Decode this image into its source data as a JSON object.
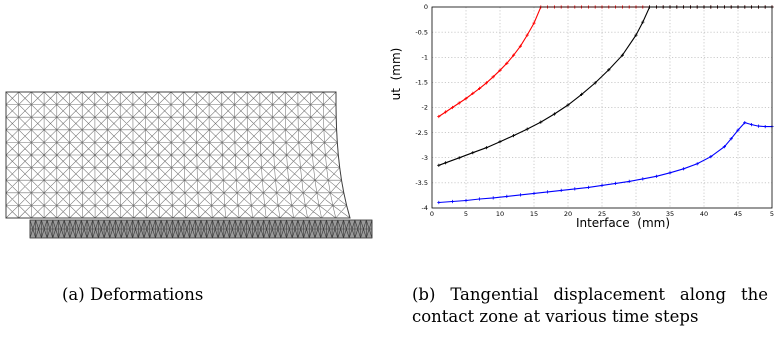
{
  "figure_a": {
    "caption_label": "(a)",
    "caption_text": "Deformations"
  },
  "figure_b": {
    "caption_label": "(b)",
    "caption_text": "Tangential displacement along the contact zone at various time steps"
  },
  "colors": {
    "red": "#ff0000",
    "black": "#000000",
    "blue": "#0000ff",
    "mesh": "#707070"
  },
  "chart_data": {
    "type": "line",
    "title": "",
    "xlabel": "Interface  (mm)",
    "ylabel": "ut  (mm)",
    "xlim": [
      0,
      50
    ],
    "ylim": [
      -4,
      0
    ],
    "xticks": [
      "0",
      "5",
      "10",
      "15",
      "20",
      "25",
      "30",
      "35",
      "40",
      "45",
      "5"
    ],
    "yticks": [
      "0",
      "-0.5",
      "-1",
      "-1.5",
      "-2",
      "-2.5",
      "-3",
      "-3.5",
      "-4"
    ],
    "grid": true,
    "series": [
      {
        "color": "#ff0000",
        "marker": "+",
        "x": [
          1,
          2,
          3,
          4,
          5,
          6,
          7,
          8,
          9,
          10,
          11,
          12,
          13,
          14,
          15,
          16,
          17,
          18,
          19,
          20,
          21,
          22,
          23,
          24,
          25,
          26,
          27,
          28,
          29,
          30,
          31,
          32,
          33,
          34,
          35,
          36,
          37,
          38,
          39,
          40,
          41,
          42,
          43,
          44,
          45,
          46,
          47,
          48,
          49,
          50
        ],
        "y": [
          -2.18,
          -2.09,
          -2.0,
          -1.91,
          -1.82,
          -1.72,
          -1.62,
          -1.51,
          -1.39,
          -1.26,
          -1.12,
          -0.96,
          -0.78,
          -0.56,
          -0.32,
          0,
          0,
          0,
          0,
          0,
          0,
          0,
          0,
          0,
          0,
          0,
          0,
          0,
          0,
          0,
          0,
          0,
          0,
          0,
          0,
          0,
          0,
          0,
          0,
          0,
          0,
          0,
          0,
          0,
          0,
          0,
          0,
          0,
          0,
          0
        ]
      },
      {
        "color": "#000000",
        "marker": "+",
        "x": [
          1,
          2,
          4,
          6,
          8,
          10,
          12,
          14,
          16,
          18,
          20,
          22,
          24,
          26,
          28,
          30,
          31,
          32,
          33,
          34,
          35,
          36,
          37,
          38,
          39,
          40,
          41,
          42,
          43,
          44,
          45,
          46,
          47,
          48,
          49,
          50
        ],
        "y": [
          -3.15,
          -3.1,
          -3.0,
          -2.9,
          -2.8,
          -2.68,
          -2.56,
          -2.43,
          -2.29,
          -2.13,
          -1.95,
          -1.74,
          -1.51,
          -1.25,
          -0.96,
          -0.56,
          -0.3,
          0,
          0,
          0,
          0,
          0,
          0,
          0,
          0,
          0,
          0,
          0,
          0,
          0,
          0,
          0,
          0,
          0,
          0,
          0
        ]
      },
      {
        "color": "#0000ff",
        "marker": "+",
        "x": [
          1,
          3,
          5,
          7,
          9,
          11,
          13,
          15,
          17,
          19,
          21,
          23,
          25,
          27,
          29,
          31,
          33,
          35,
          37,
          39,
          41,
          43,
          44,
          45,
          46,
          47,
          48,
          49,
          50
        ],
        "y": [
          -3.89,
          -3.87,
          -3.85,
          -3.82,
          -3.8,
          -3.77,
          -3.74,
          -3.71,
          -3.68,
          -3.65,
          -3.62,
          -3.59,
          -3.55,
          -3.51,
          -3.47,
          -3.42,
          -3.37,
          -3.3,
          -3.22,
          -3.12,
          -2.98,
          -2.78,
          -2.62,
          -2.45,
          -2.3,
          -2.34,
          -2.37,
          -2.38,
          -2.38
        ]
      }
    ]
  }
}
